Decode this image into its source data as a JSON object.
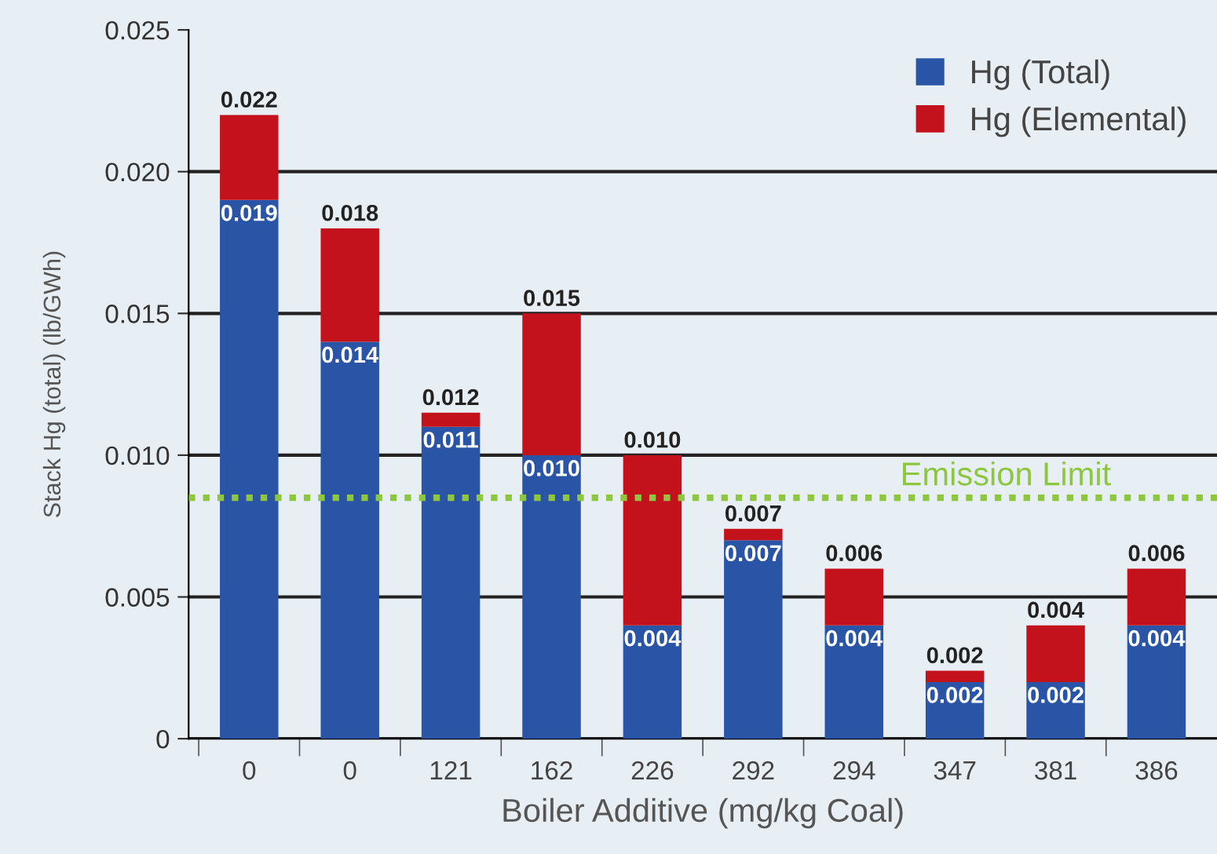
{
  "chart_data": {
    "type": "bar",
    "stacked": true,
    "xlabel": "Boiler Additive (mg/kg Coal)",
    "ylabel": "Stack Hg (total) (lb/GWh)",
    "categories": [
      "0",
      "0",
      "121",
      "162",
      "226",
      "292",
      "294",
      "347",
      "381",
      "386"
    ],
    "series": [
      {
        "name": "Hg (Total)",
        "color": "#2a55a6",
        "values": [
          0.019,
          0.014,
          0.011,
          0.01,
          0.004,
          0.007,
          0.004,
          0.002,
          0.002,
          0.004
        ],
        "value_labels": [
          "0.019",
          "0.014",
          "0.011",
          "0.010",
          "0.004",
          "0.007",
          "0.004",
          "0.002",
          "0.002",
          "0.004"
        ]
      },
      {
        "name": "Hg (Elemental)",
        "color": "#c3121c",
        "values": [
          0.003,
          0.004,
          0.0005,
          0.005,
          0.006,
          0.0004,
          0.002,
          0.0004,
          0.002,
          0.002
        ]
      }
    ],
    "totals": [
      "0.022",
      "0.018",
      "0.012",
      "0.015",
      "0.010",
      "0.007",
      "0.006",
      "0.002",
      "0.004",
      "0.006"
    ],
    "ylim": [
      0,
      0.025
    ],
    "yticks": [
      0,
      0.005,
      {
        "value": 0.01,
        "label": "0.010"
      },
      0.015,
      {
        "value": 0.02,
        "label": "0.020"
      },
      0.025
    ],
    "ref_lines": [
      {
        "axis": "y",
        "value": 0.0085,
        "label": "Emission Limit",
        "color": "#8dc63f",
        "line_style": "dotted"
      }
    ],
    "grid": "y",
    "legend": "top right"
  }
}
